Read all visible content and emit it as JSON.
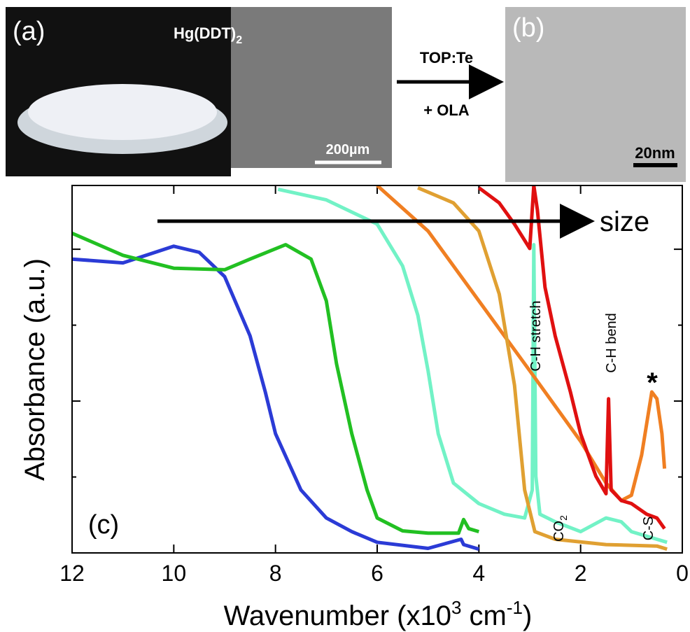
{
  "panels": {
    "a_label": "(a)",
    "compound": [
      "Hg(DDT)",
      "2"
    ],
    "sem_scale": "200µm",
    "reagent_top": "TOP:Te",
    "reagent_bottom": "+ OLA",
    "b_label": "(b)",
    "tem_scale": "20nm"
  },
  "chart_data": {
    "type": "line",
    "xlabel": [
      "Wavenumber (x10",
      "3",
      " cm",
      "-1",
      ")"
    ],
    "ylabel": "Absorbance (a.u.)",
    "xlim": [
      12,
      0
    ],
    "xticks": [
      12,
      10,
      8,
      6,
      4,
      2,
      0
    ],
    "ylim": [
      0,
      4.84
    ],
    "yticks": [
      1,
      2,
      3,
      4
    ],
    "ytick_labels": false,
    "annotations": {
      "panel": "(c)",
      "trend": "size",
      "ch_stretch": "C-H stretch",
      "ch_bend": "C-H bend",
      "co2": [
        "CO",
        "2"
      ],
      "cs": "C-S",
      "star": "*"
    },
    "series": [
      {
        "color": "#2b3bd6",
        "x": [
          12,
          11,
          10,
          9.5,
          9,
          8.5,
          8.2,
          8,
          7.5,
          7,
          6.5,
          6,
          5,
          4.35,
          4.3,
          4
        ],
        "values": [
          3.87,
          3.82,
          4.04,
          3.96,
          3.64,
          2.86,
          2.12,
          1.57,
          0.83,
          0.46,
          0.28,
          0.14,
          0.06,
          0.18,
          0.11,
          0.05
        ]
      },
      {
        "color": "#22c022",
        "x": [
          12,
          11,
          10,
          9,
          8.5,
          7.8,
          7.3,
          7,
          6.8,
          6.5,
          6.2,
          6,
          5.5,
          5,
          4.4,
          4.3,
          4.2,
          4
        ],
        "values": [
          4.21,
          3.92,
          3.75,
          3.73,
          3.87,
          4.06,
          3.87,
          3.32,
          2.49,
          1.57,
          0.83,
          0.46,
          0.29,
          0.26,
          0.26,
          0.44,
          0.32,
          0.28
        ]
      },
      {
        "color": "#72f2c6",
        "x": [
          7.95,
          7,
          6,
          5.5,
          5.2,
          5,
          4.8,
          4.5,
          4,
          3.5,
          3.1,
          2.95,
          2.92,
          2.88,
          2.8,
          2.5,
          2,
          1.5,
          1.2,
          1,
          0.5,
          0.3
        ],
        "values": [
          4.79,
          4.65,
          4.33,
          3.78,
          3.13,
          2.4,
          1.57,
          0.92,
          0.65,
          0.51,
          0.46,
          0.83,
          4.06,
          1.01,
          0.51,
          0.41,
          0.28,
          0.46,
          0.41,
          0.28,
          0.18,
          0.14
        ]
      },
      {
        "color": "#f07f22",
        "x": [
          6,
          5,
          4,
          3,
          2,
          1.5,
          1.2,
          1,
          0.8,
          0.6,
          0.5,
          0.4,
          0.35
        ],
        "values": [
          4.84,
          4.24,
          3.32,
          2.4,
          1.47,
          0.92,
          0.69,
          0.76,
          1.29,
          2.12,
          2.03,
          1.57,
          1.11
        ]
      },
      {
        "color": "#e0a032",
        "x": [
          5.2,
          4.5,
          4,
          3.6,
          3.3,
          3.1,
          2.9,
          2.5,
          1.5,
          0.5,
          0.3
        ],
        "values": [
          4.81,
          4.61,
          4.24,
          3.41,
          2.21,
          0.83,
          0.28,
          0.18,
          0.11,
          0.09,
          0.05
        ]
      },
      {
        "color": "#e01010",
        "x": [
          4,
          3.6,
          3.3,
          3,
          2.92,
          2.85,
          2.7,
          2.5,
          2.2,
          2,
          1.7,
          1.5,
          1.45,
          1.4,
          1.2,
          1,
          0.7,
          0.5,
          0.35
        ],
        "values": [
          4.81,
          4.61,
          4.33,
          4.01,
          4.84,
          4.52,
          3.5,
          2.86,
          2.12,
          1.57,
          1.01,
          0.78,
          2.03,
          0.83,
          0.69,
          0.65,
          0.51,
          0.46,
          0.32
        ]
      }
    ]
  }
}
